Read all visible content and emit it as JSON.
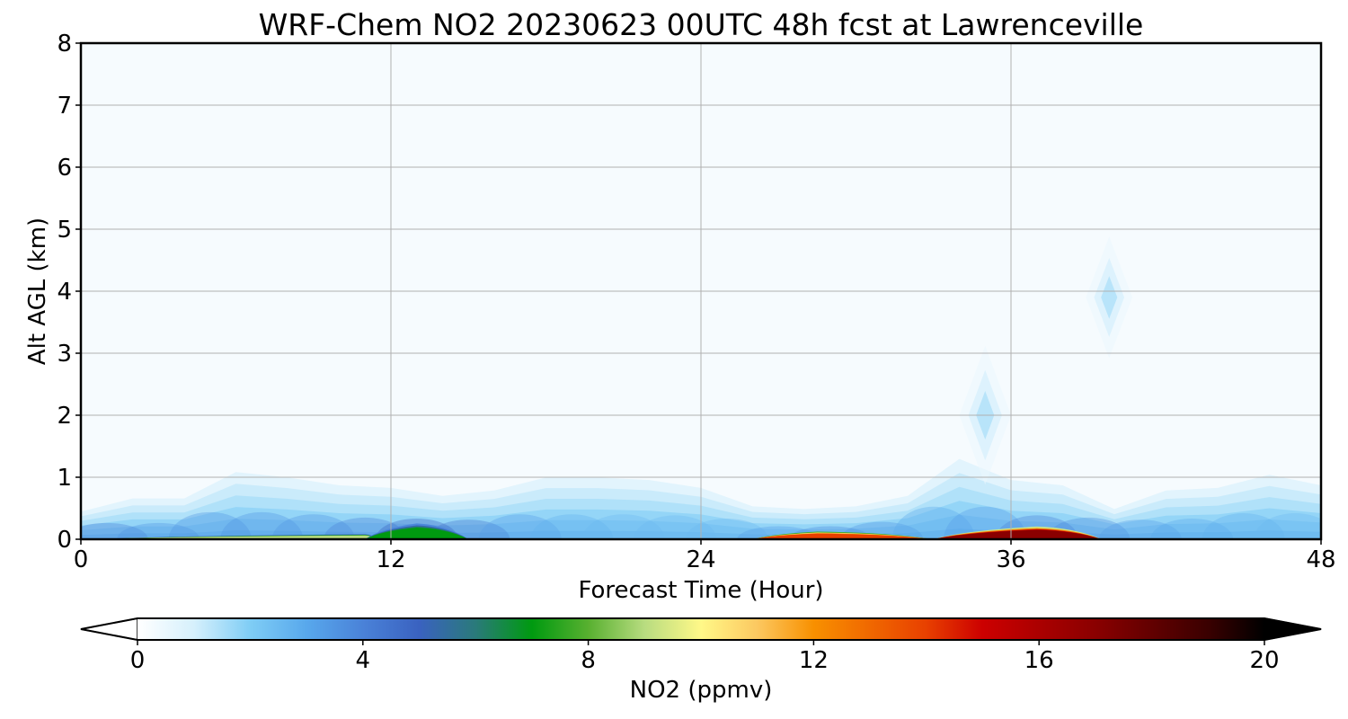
{
  "chart_data": {
    "type": "heatmap",
    "title": "WRF-Chem NO2  20230623 00UTC 48h fcst at Lawrenceville",
    "xlabel": "Forecast Time (Hour)",
    "ylabel": "Alt AGL (km)",
    "xlim": [
      0,
      48
    ],
    "ylim": [
      0,
      8
    ],
    "x_ticks": [
      "0",
      "12",
      "24",
      "36",
      "48"
    ],
    "y_ticks": [
      "0",
      "1",
      "2",
      "3",
      "4",
      "5",
      "6",
      "7",
      "8"
    ],
    "grid": true,
    "colorbar": {
      "label": "NO2  (ppmv)",
      "range": [
        0,
        20
      ],
      "ticks": [
        "0",
        "4",
        "8",
        "12",
        "16",
        "20"
      ],
      "extend": "both",
      "stops": [
        {
          "v": 0,
          "c": "#ffffff"
        },
        {
          "v": 1,
          "c": "#d6f0fc"
        },
        {
          "v": 2,
          "c": "#7fcdf5"
        },
        {
          "v": 3,
          "c": "#58a8ec"
        },
        {
          "v": 4,
          "c": "#4a82d8"
        },
        {
          "v": 5,
          "c": "#3a62c0"
        },
        {
          "v": 6,
          "c": "#2a7a7a"
        },
        {
          "v": 7,
          "c": "#009a10"
        },
        {
          "v": 8,
          "c": "#58b030"
        },
        {
          "v": 9,
          "c": "#b8dc80"
        },
        {
          "v": 10,
          "c": "#fff888"
        },
        {
          "v": 11,
          "c": "#fcc860"
        },
        {
          "v": 12,
          "c": "#f89000"
        },
        {
          "v": 14,
          "c": "#e84000"
        },
        {
          "v": 15,
          "c": "#cc0000"
        },
        {
          "v": 17,
          "c": "#8a0000"
        },
        {
          "v": 19,
          "c": "#3a0000"
        },
        {
          "v": 20,
          "c": "#000000"
        }
      ]
    },
    "background_color": "#f6fbfe",
    "boundary_layer_ppmv": [
      {
        "x": 0,
        "h": 0.5,
        "v": 4.0
      },
      {
        "x": 2,
        "h": 0.75,
        "v": 3.0
      },
      {
        "x": 4,
        "h": 0.75,
        "v": 3.0
      },
      {
        "x": 6,
        "h": 1.25,
        "v": 3.0
      },
      {
        "x": 8,
        "h": 1.15,
        "v": 3.0
      },
      {
        "x": 10,
        "h": 1.0,
        "v": 3.0
      },
      {
        "x": 12,
        "h": 0.95,
        "v": 4.0
      },
      {
        "x": 14,
        "h": 0.8,
        "v": 5.0
      },
      {
        "x": 16,
        "h": 0.9,
        "v": 3.0
      },
      {
        "x": 18,
        "h": 1.15,
        "v": 2.5
      },
      {
        "x": 20,
        "h": 1.15,
        "v": 2.0
      },
      {
        "x": 22,
        "h": 1.1,
        "v": 2.0
      },
      {
        "x": 24,
        "h": 0.95,
        "v": 2.0
      },
      {
        "x": 26,
        "h": 0.6,
        "v": 2.0
      },
      {
        "x": 28,
        "h": 0.55,
        "v": 3.5
      },
      {
        "x": 30,
        "h": 0.6,
        "v": 3.0
      },
      {
        "x": 32,
        "h": 0.8,
        "v": 3.0
      },
      {
        "x": 34,
        "h": 1.5,
        "v": 2.0
      },
      {
        "x": 36,
        "h": 1.1,
        "v": 3.5
      },
      {
        "x": 38,
        "h": 1.0,
        "v": 3.5
      },
      {
        "x": 40,
        "h": 0.55,
        "v": 3.0
      },
      {
        "x": 42,
        "h": 0.9,
        "v": 2.5
      },
      {
        "x": 44,
        "h": 0.95,
        "v": 2.5
      },
      {
        "x": 46,
        "h": 1.2,
        "v": 2.0
      },
      {
        "x": 48,
        "h": 1.0,
        "v": 2.0
      }
    ],
    "surface_peaks_ppmv": [
      {
        "x0": 0.5,
        "x1": 11.5,
        "peak_x": 11.0,
        "h": 0.08,
        "v": 9.0
      },
      {
        "x0": 11.0,
        "x1": 15.0,
        "peak_x": 13.0,
        "h": 0.25,
        "v": 7.0
      },
      {
        "x0": 26.0,
        "x1": 33.0,
        "peak_x": 28.5,
        "h": 0.12,
        "v": 14.0
      },
      {
        "x0": 33.0,
        "x1": 39.5,
        "peak_x": 37.0,
        "h": 0.2,
        "v": 17.0
      }
    ],
    "elevated_plumes_ppmv": [
      {
        "x": 39.8,
        "y": 3.9,
        "w": 0.9,
        "h": 0.7,
        "v": 1.0
      },
      {
        "x": 35.0,
        "y": 2.0,
        "w": 1.0,
        "h": 0.8,
        "v": 1.0
      }
    ]
  }
}
